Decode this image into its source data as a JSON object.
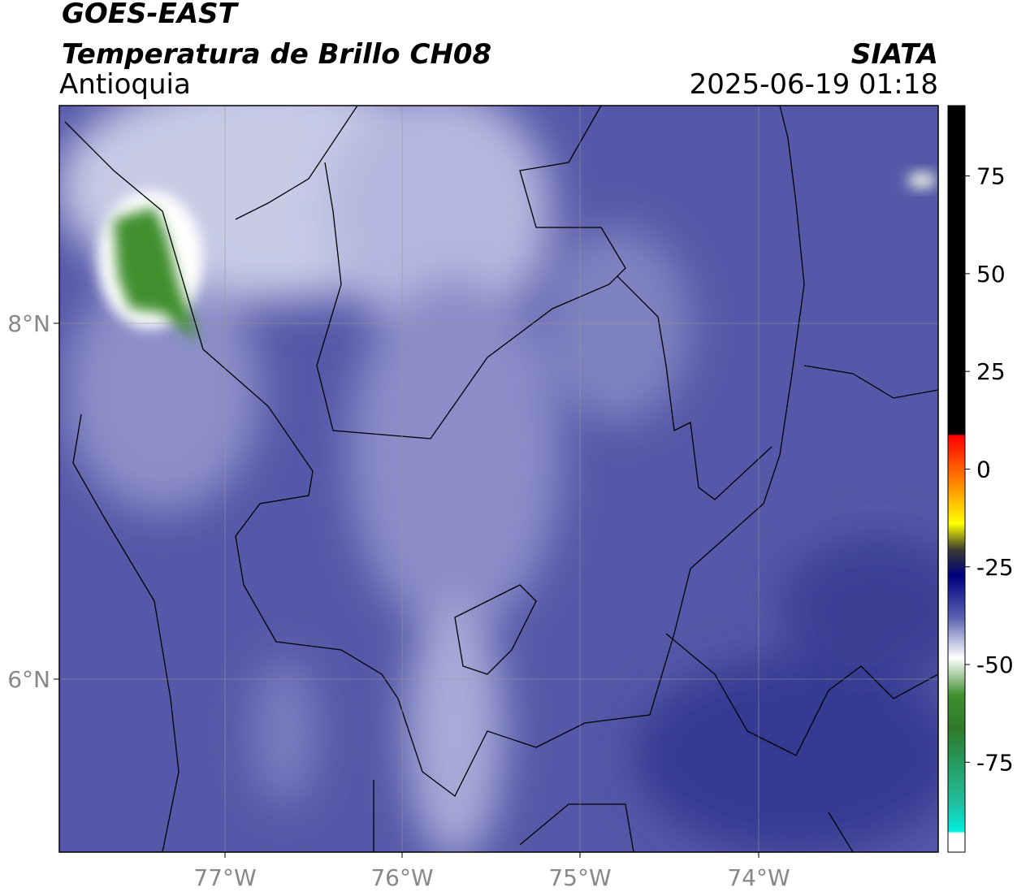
{
  "header": {
    "title": "GOES-EAST",
    "subtitle": "Temperatura de Brillo CH08",
    "region": "Antioquia",
    "source": "SIATA",
    "datetime": "2025-06-19 01:18"
  },
  "map": {
    "lat_labels": [
      "8°N",
      "6°N"
    ],
    "lon_labels": [
      "77°W",
      "76°W",
      "75°W",
      "74°W"
    ]
  },
  "colorbar": {
    "range": [
      -98,
      93
    ],
    "ticks": [
      75,
      50,
      25,
      0,
      -25,
      -50,
      -75
    ]
  }
}
